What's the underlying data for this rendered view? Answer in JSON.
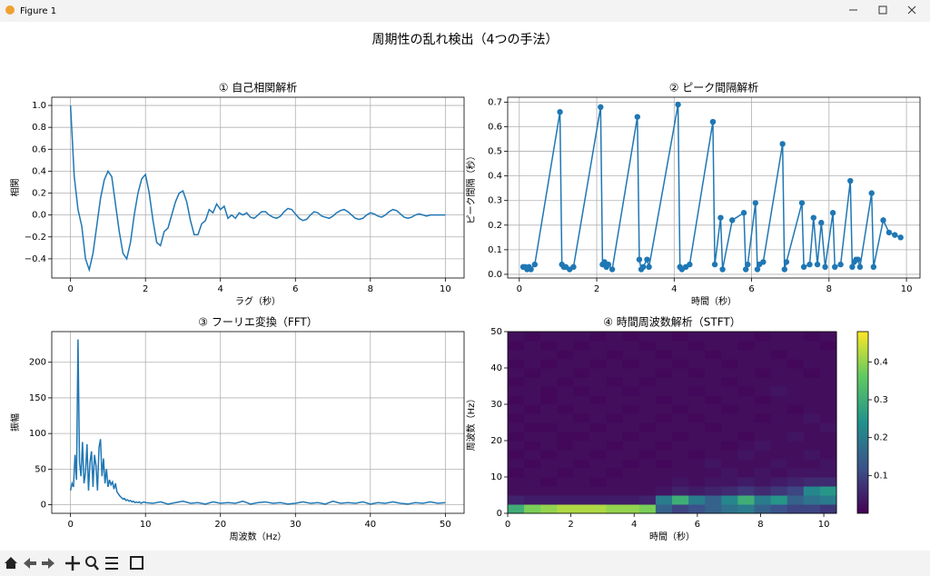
{
  "window": {
    "title": "Figure 1"
  },
  "figure_title": "周期性の乱れ検出（4つの手法）",
  "chart_data": [
    {
      "type": "line",
      "title": "① 自己相関解析",
      "xlabel": "ラグ（秒）",
      "ylabel": "相関",
      "color": "#1f77b4",
      "grid": true,
      "markers": false,
      "x": [
        0,
        0.1,
        0.2,
        0.3,
        0.4,
        0.5,
        0.6,
        0.7,
        0.8,
        0.9,
        1,
        1.1,
        1.2,
        1.3,
        1.4,
        1.5,
        1.6,
        1.7,
        1.8,
        1.9,
        2,
        2.1,
        2.2,
        2.3,
        2.4,
        2.5,
        2.6,
        2.7,
        2.8,
        2.9,
        3,
        3.1,
        3.2,
        3.3,
        3.4,
        3.5,
        3.6,
        3.7,
        3.8,
        3.9,
        4,
        4.1,
        4.2,
        4.3,
        4.4,
        4.5,
        4.6,
        4.7,
        4.8,
        4.9,
        5,
        5.1,
        5.2,
        5.3,
        5.4,
        5.5,
        5.6,
        5.7,
        5.8,
        5.9,
        6,
        6.1,
        6.2,
        6.3,
        6.4,
        6.5,
        6.6,
        6.7,
        6.8,
        6.9,
        7,
        7.1,
        7.2,
        7.3,
        7.4,
        7.5,
        7.6,
        7.7,
        7.8,
        7.9,
        8,
        8.1,
        8.2,
        8.3,
        8.4,
        8.5,
        8.6,
        8.7,
        8.8,
        8.9,
        9,
        9.1,
        9.2,
        9.3,
        9.4,
        9.5,
        9.6,
        9.7,
        9.8,
        9.9,
        10
      ],
      "values": [
        1.0,
        0.35,
        0.05,
        -0.1,
        -0.4,
        -0.5,
        -0.35,
        -0.1,
        0.15,
        0.32,
        0.4,
        0.35,
        0.1,
        -0.15,
        -0.35,
        -0.4,
        -0.25,
        0.0,
        0.2,
        0.33,
        0.37,
        0.2,
        -0.05,
        -0.25,
        -0.28,
        -0.15,
        -0.12,
        0.0,
        0.12,
        0.2,
        0.22,
        0.12,
        -0.05,
        -0.18,
        -0.18,
        -0.08,
        -0.05,
        0.05,
        0.02,
        0.1,
        0.05,
        0.08,
        -0.03,
        0.0,
        -0.03,
        0.02,
        0.0,
        0.02,
        -0.02,
        -0.03,
        0.0,
        0.03,
        0.03,
        0.0,
        -0.02,
        -0.03,
        -0.01,
        0.03,
        0.06,
        0.05,
        0.01,
        -0.03,
        -0.05,
        -0.04,
        0.0,
        0.03,
        0.02,
        -0.01,
        -0.02,
        -0.03,
        -0.01,
        0.02,
        0.04,
        0.05,
        0.03,
        0.0,
        -0.03,
        -0.04,
        -0.03,
        0.0,
        0.02,
        0.01,
        -0.01,
        -0.02,
        0.0,
        0.03,
        0.05,
        0.04,
        0.01,
        -0.02,
        -0.03,
        -0.02,
        0.0,
        0.01,
        0.0,
        -0.01,
        0.0,
        0.0,
        0.0,
        0.0,
        0.0
      ],
      "xlim": [
        -0.5,
        10.5
      ],
      "ylim": [
        -0.575,
        1.075
      ],
      "xticks": [
        0,
        2,
        4,
        6,
        8,
        10
      ],
      "yticks": [
        {
          "value": -0.4,
          "label": "−0.4"
        },
        {
          "value": -0.2,
          "label": "−0.2"
        },
        {
          "value": 0,
          "label": "0.0"
        },
        0.2,
        0.4,
        0.6,
        0.8,
        {
          "value": 1,
          "label": "1.0"
        }
      ]
    },
    {
      "type": "line",
      "title": "② ピーク間隔解析",
      "xlabel": "時間（秒）",
      "ylabel": "ピーク間隔（秒）",
      "color": "#1f77b4",
      "grid": true,
      "markers": true,
      "x": [
        0.1,
        0.15,
        0.2,
        0.25,
        0.3,
        0.4,
        1.05,
        1.1,
        1.15,
        1.2,
        1.3,
        1.4,
        2.1,
        2.15,
        2.2,
        2.25,
        2.3,
        2.4,
        3.05,
        3.1,
        3.15,
        3.2,
        3.3,
        3.35,
        4.1,
        4.15,
        4.2,
        4.3,
        4.4,
        5.0,
        5.05,
        5.2,
        5.25,
        5.5,
        5.8,
        5.85,
        5.9,
        6.1,
        6.15,
        6.2,
        6.3,
        6.8,
        6.85,
        6.9,
        7.3,
        7.35,
        7.5,
        7.6,
        7.7,
        7.8,
        7.9,
        8.1,
        8.15,
        8.3,
        8.55,
        8.6,
        8.65,
        8.7,
        8.75,
        8.8,
        9.1,
        9.15,
        9.4,
        9.55,
        9.7,
        9.85
      ],
      "values": [
        0.03,
        0.03,
        0.02,
        0.03,
        0.02,
        0.04,
        0.66,
        0.04,
        0.03,
        0.03,
        0.02,
        0.03,
        0.68,
        0.04,
        0.05,
        0.03,
        0.04,
        0.02,
        0.64,
        0.06,
        0.02,
        0.03,
        0.06,
        0.03,
        0.69,
        0.03,
        0.02,
        0.03,
        0.04,
        0.62,
        0.04,
        0.23,
        0.02,
        0.22,
        0.25,
        0.02,
        0.04,
        0.29,
        0.02,
        0.04,
        0.05,
        0.53,
        0.02,
        0.05,
        0.29,
        0.03,
        0.04,
        0.23,
        0.04,
        0.21,
        0.03,
        0.25,
        0.03,
        0.04,
        0.38,
        0.03,
        0.05,
        0.06,
        0.06,
        0.03,
        0.33,
        0.03,
        0.22,
        0.17,
        0.16,
        0.15
      ],
      "xlim": [
        -0.3,
        10.35
      ],
      "ylim": [
        -0.015,
        0.72
      ],
      "xticks": [
        0,
        2,
        4,
        6,
        8,
        10
      ],
      "yticks": [
        {
          "value": 0,
          "label": "0.0"
        },
        0.1,
        0.2,
        0.3,
        0.4,
        0.5,
        0.6,
        0.7
      ]
    },
    {
      "type": "line",
      "title": "③ フーリエ変換（FFT）",
      "xlabel": "周波数（Hz）",
      "ylabel": "振幅",
      "color": "#1f77b4",
      "grid": true,
      "markers": false,
      "x": [
        0,
        0.2,
        0.4,
        0.6,
        0.8,
        1,
        1.2,
        1.4,
        1.6,
        1.8,
        2,
        2.2,
        2.4,
        2.6,
        2.8,
        3,
        3.2,
        3.4,
        3.6,
        3.8,
        4,
        4.2,
        4.4,
        4.6,
        4.8,
        5,
        5.2,
        5.4,
        5.6,
        5.8,
        6,
        6.2,
        6.4,
        6.6,
        6.8,
        7,
        7.2,
        7.4,
        7.6,
        7.8,
        8,
        8.2,
        8.4,
        8.6,
        8.8,
        9,
        9.2,
        9.4,
        9.6,
        9.8,
        10,
        11,
        12,
        13,
        14,
        15,
        16,
        17,
        18,
        19,
        20,
        21,
        22,
        23,
        24,
        25,
        26,
        27,
        28,
        29,
        30,
        31,
        32,
        33,
        34,
        35,
        36,
        37,
        38,
        39,
        40,
        41,
        42,
        43,
        44,
        45,
        46,
        47,
        48,
        49,
        50
      ],
      "values": [
        20,
        30,
        25,
        70,
        35,
        232,
        60,
        40,
        88,
        30,
        45,
        85,
        20,
        60,
        75,
        25,
        70,
        55,
        20,
        80,
        92,
        40,
        65,
        30,
        50,
        25,
        35,
        28,
        32,
        22,
        30,
        18,
        15,
        12,
        10,
        8,
        9,
        6,
        7,
        5,
        6,
        4,
        5,
        3,
        4,
        3,
        4,
        2,
        3,
        4,
        3,
        2,
        4,
        1,
        3,
        5,
        2,
        3,
        1,
        4,
        2,
        3,
        2,
        5,
        1,
        3,
        4,
        2,
        3,
        1,
        2,
        4,
        2,
        3,
        1,
        5,
        2,
        3,
        2,
        4,
        1,
        3,
        2,
        4,
        2,
        1,
        3,
        2,
        4,
        2,
        3
      ],
      "xlim": [
        -2.5,
        52.5
      ],
      "ylim": [
        -12,
        243
      ],
      "xticks": [
        0,
        10,
        20,
        30,
        40,
        50
      ],
      "yticks": [
        0,
        50,
        100,
        150,
        200
      ]
    },
    {
      "type": "heatmap",
      "title": "④ 時間周波数解析（STFT）",
      "xlabel": "時間（秒）",
      "ylabel": "周波数（Hz）",
      "grid": false,
      "colormap": "viridis",
      "x": [
        0.26,
        0.78,
        1.3,
        1.82,
        2.34,
        2.86,
        3.38,
        3.9,
        4.42,
        4.94,
        5.46,
        5.98,
        6.5,
        7.02,
        7.54,
        8.06,
        8.58,
        9.1,
        9.62,
        10.14
      ],
      "y": [
        1.25,
        3.75,
        6.25,
        8.75,
        11.25,
        13.75,
        16.25,
        18.75,
        21.25,
        23.75,
        26.25,
        28.75,
        31.25,
        33.75,
        36.25,
        38.75,
        41.25,
        43.75,
        46.25,
        48.75
      ],
      "z": [
        [
          0.3,
          0.38,
          0.4,
          0.42,
          0.42,
          0.42,
          0.4,
          0.4,
          0.38,
          0.15,
          0.1,
          0.12,
          0.15,
          0.18,
          0.2,
          0.15,
          0.12,
          0.1,
          0.1,
          0.08
        ],
        [
          0.05,
          0.04,
          0.04,
          0.04,
          0.04,
          0.04,
          0.04,
          0.04,
          0.05,
          0.2,
          0.3,
          0.2,
          0.15,
          0.22,
          0.3,
          0.2,
          0.25,
          0.15,
          0.18,
          0.2
        ],
        [
          0.02,
          0.02,
          0.02,
          0.02,
          0.02,
          0.02,
          0.02,
          0.02,
          0.02,
          0.03,
          0.05,
          0.04,
          0.05,
          0.06,
          0.08,
          0.06,
          0.08,
          0.1,
          0.22,
          0.25
        ],
        [
          0.02,
          0.02,
          0.01,
          0.02,
          0.02,
          0.01,
          0.02,
          0.02,
          0.02,
          0.02,
          0.03,
          0.02,
          0.03,
          0.03,
          0.04,
          0.03,
          0.04,
          0.05,
          0.06,
          0.06
        ],
        [
          0.01,
          0.02,
          0.02,
          0.01,
          0.02,
          0.02,
          0.01,
          0.02,
          0.02,
          0.02,
          0.02,
          0.02,
          0.02,
          0.03,
          0.02,
          0.03,
          0.02,
          0.03,
          0.03,
          0.03
        ],
        [
          0.02,
          0.01,
          0.02,
          0.02,
          0.01,
          0.02,
          0.02,
          0.01,
          0.02,
          0.01,
          0.02,
          0.02,
          0.03,
          0.02,
          0.02,
          0.02,
          0.03,
          0.02,
          0.02,
          0.03
        ],
        [
          0.01,
          0.02,
          0.01,
          0.02,
          0.02,
          0.01,
          0.02,
          0.02,
          0.01,
          0.02,
          0.02,
          0.01,
          0.02,
          0.02,
          0.03,
          0.02,
          0.02,
          0.02,
          0.03,
          0.02
        ],
        [
          0.02,
          0.01,
          0.02,
          0.01,
          0.02,
          0.02,
          0.01,
          0.02,
          0.02,
          0.01,
          0.02,
          0.02,
          0.02,
          0.01,
          0.02,
          0.03,
          0.02,
          0.02,
          0.02,
          0.02
        ],
        [
          0.01,
          0.02,
          0.02,
          0.01,
          0.01,
          0.02,
          0.02,
          0.01,
          0.02,
          0.02,
          0.01,
          0.02,
          0.02,
          0.02,
          0.01,
          0.02,
          0.02,
          0.03,
          0.02,
          0.02
        ],
        [
          0.02,
          0.01,
          0.01,
          0.02,
          0.02,
          0.01,
          0.02,
          0.02,
          0.01,
          0.02,
          0.02,
          0.02,
          0.01,
          0.02,
          0.02,
          0.02,
          0.02,
          0.02,
          0.02,
          0.03
        ],
        [
          0.01,
          0.02,
          0.02,
          0.02,
          0.01,
          0.02,
          0.01,
          0.02,
          0.02,
          0.01,
          0.02,
          0.01,
          0.02,
          0.02,
          0.02,
          0.01,
          0.02,
          0.02,
          0.03,
          0.02
        ],
        [
          0.02,
          0.01,
          0.02,
          0.01,
          0.02,
          0.02,
          0.02,
          0.01,
          0.02,
          0.02,
          0.01,
          0.02,
          0.02,
          0.01,
          0.02,
          0.02,
          0.02,
          0.01,
          0.02,
          0.02
        ],
        [
          0.01,
          0.02,
          0.01,
          0.02,
          0.02,
          0.01,
          0.02,
          0.02,
          0.02,
          0.01,
          0.02,
          0.02,
          0.01,
          0.02,
          0.02,
          0.01,
          0.02,
          0.02,
          0.02,
          0.02
        ],
        [
          0.02,
          0.02,
          0.01,
          0.02,
          0.01,
          0.02,
          0.02,
          0.01,
          0.02,
          0.02,
          0.02,
          0.01,
          0.02,
          0.02,
          0.01,
          0.02,
          0.03,
          0.02,
          0.02,
          0.02
        ],
        [
          0.01,
          0.02,
          0.02,
          0.01,
          0.02,
          0.02,
          0.01,
          0.02,
          0.01,
          0.02,
          0.02,
          0.02,
          0.02,
          0.01,
          0.02,
          0.02,
          0.02,
          0.02,
          0.02,
          0.02
        ],
        [
          0.02,
          0.01,
          0.02,
          0.02,
          0.01,
          0.02,
          0.02,
          0.02,
          0.02,
          0.01,
          0.02,
          0.01,
          0.02,
          0.02,
          0.02,
          0.01,
          0.02,
          0.02,
          0.01,
          0.02
        ],
        [
          0.01,
          0.02,
          0.01,
          0.02,
          0.02,
          0.01,
          0.02,
          0.01,
          0.02,
          0.02,
          0.01,
          0.02,
          0.02,
          0.01,
          0.02,
          0.02,
          0.02,
          0.01,
          0.02,
          0.02
        ],
        [
          0.02,
          0.02,
          0.02,
          0.01,
          0.02,
          0.02,
          0.01,
          0.02,
          0.02,
          0.01,
          0.02,
          0.02,
          0.01,
          0.02,
          0.02,
          0.02,
          0.01,
          0.02,
          0.02,
          0.02
        ],
        [
          0.01,
          0.02,
          0.01,
          0.02,
          0.01,
          0.02,
          0.02,
          0.02,
          0.01,
          0.02,
          0.02,
          0.01,
          0.02,
          0.02,
          0.01,
          0.02,
          0.02,
          0.02,
          0.02,
          0.01
        ],
        [
          0.02,
          0.01,
          0.02,
          0.02,
          0.02,
          0.01,
          0.02,
          0.01,
          0.02,
          0.02,
          0.01,
          0.02,
          0.02,
          0.02,
          0.02,
          0.01,
          0.02,
          0.02,
          0.01,
          0.02
        ]
      ],
      "xlim": [
        0,
        10.4
      ],
      "ylim": [
        0,
        50
      ],
      "xticks": [
        0,
        2,
        4,
        6,
        8,
        10
      ],
      "yticks": [
        0,
        10,
        20,
        30,
        40,
        50
      ],
      "colorbar": {
        "clim": [
          0,
          0.48
        ],
        "ticks": [
          0.1,
          0.2,
          0.3,
          0.4
        ]
      }
    }
  ]
}
